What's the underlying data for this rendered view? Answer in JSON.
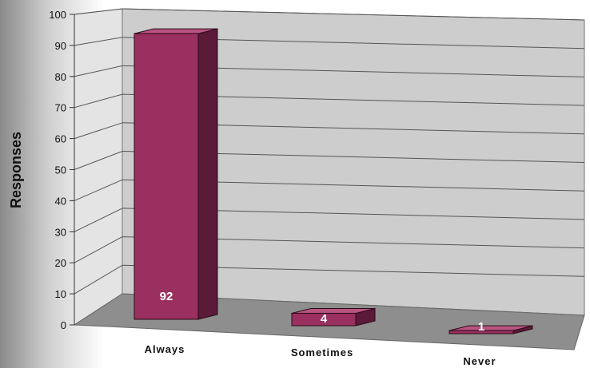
{
  "chart_data": {
    "type": "bar",
    "title": "",
    "xlabel": "",
    "ylabel": "Responses",
    "categories": [
      "Always",
      "Sometimes",
      "Never"
    ],
    "values": [
      92,
      4,
      1
    ],
    "data_labels": [
      "92",
      "4",
      "1"
    ],
    "ylim": [
      0,
      100
    ],
    "yticks": [
      0,
      10,
      20,
      30,
      40,
      50,
      60,
      70,
      80,
      90,
      100
    ],
    "grid": true,
    "legend": "none",
    "style": "3d-column",
    "colors": {
      "bar_front": "#99305f",
      "bar_top": "#b8547f",
      "bar_side": "#5a1a38",
      "back_wall": "#cdcdcd",
      "floor": "#8e8e8e"
    }
  }
}
